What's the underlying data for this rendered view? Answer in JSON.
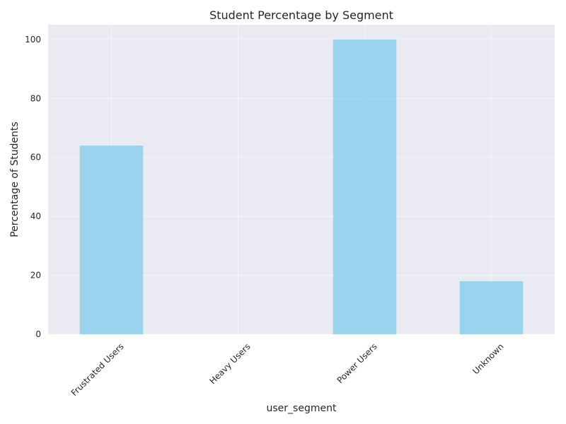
{
  "chart_data": {
    "type": "bar",
    "title": "Student Percentage by Segment",
    "xlabel": "user_segment",
    "ylabel": "Percentage of Students",
    "categories": [
      "Frustrated Users",
      "Heavy Users",
      "Power Users",
      "Unknown"
    ],
    "values": [
      64,
      0,
      100,
      18
    ],
    "ylim": [
      0,
      105
    ],
    "yticks": [
      0,
      20,
      40,
      60,
      80,
      100
    ],
    "grid": true,
    "bar_color": "#87ceeb",
    "background_color": "#eaeaf2"
  }
}
